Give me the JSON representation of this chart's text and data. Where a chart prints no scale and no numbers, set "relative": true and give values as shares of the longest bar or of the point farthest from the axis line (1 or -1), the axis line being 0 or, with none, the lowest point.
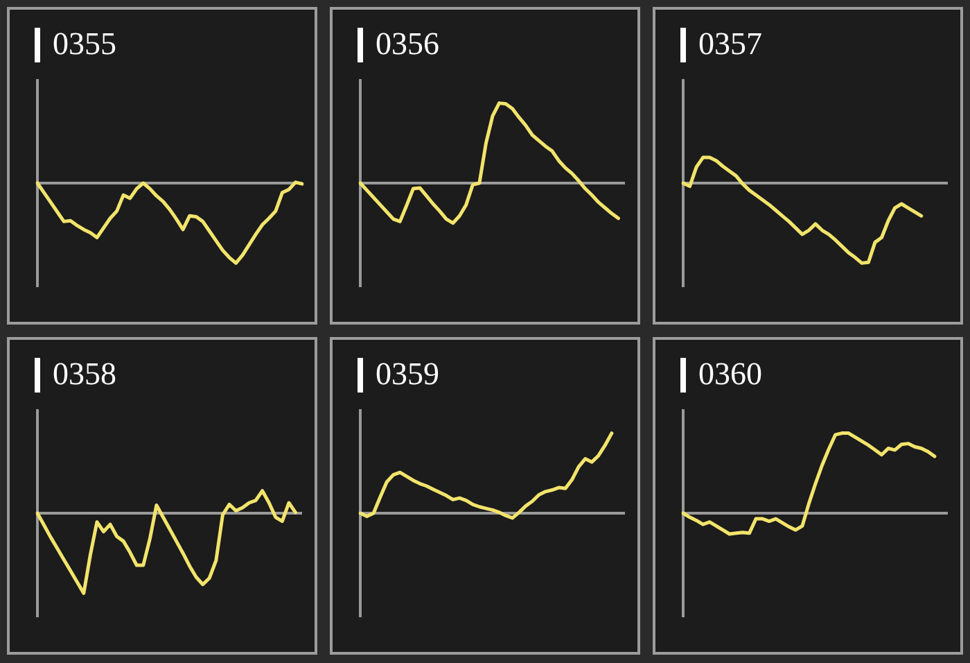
{
  "chart_data": [
    {
      "type": "line",
      "title": "0355",
      "relative": true,
      "color": "#f2e46b",
      "categories": [
        null,
        null,
        null,
        null,
        null,
        null,
        null,
        null,
        null,
        null,
        null,
        null,
        null,
        null,
        null,
        null,
        null,
        null,
        null,
        null,
        null,
        null,
        null,
        null,
        null,
        null,
        null,
        null,
        null,
        null,
        null,
        null,
        null,
        null,
        null,
        null,
        null,
        null,
        null,
        null,
        null
      ],
      "values": [
        0,
        -0.12,
        -0.24,
        -0.36,
        -0.48,
        -0.47,
        -0.53,
        -0.58,
        -0.62,
        -0.68,
        -0.56,
        -0.44,
        -0.35,
        -0.15,
        -0.19,
        -0.07,
        0,
        -0.07,
        -0.16,
        -0.23,
        -0.33,
        -0.45,
        -0.58,
        -0.41,
        -0.42,
        -0.48,
        -0.6,
        -0.72,
        -0.84,
        -0.93,
        -1,
        -0.9,
        -0.77,
        -0.64,
        -0.52,
        -0.44,
        -0.35,
        -0.12,
        -0.08,
        0.01,
        -0.01
      ]
    },
    {
      "type": "line",
      "title": "0356",
      "relative": true,
      "color": "#f2e46b",
      "categories": [
        null,
        null,
        null,
        null,
        null,
        null,
        null,
        null,
        null,
        null,
        null,
        null,
        null,
        null,
        null,
        null,
        null,
        null,
        null,
        null,
        null,
        null,
        null,
        null,
        null,
        null,
        null,
        null,
        null,
        null,
        null,
        null,
        null,
        null,
        null,
        null,
        null,
        null,
        null,
        null,
        null
      ],
      "values": [
        0,
        -0.09,
        -0.18,
        -0.27,
        -0.36,
        -0.45,
        -0.48,
        -0.28,
        -0.07,
        -0.06,
        -0.16,
        -0.26,
        -0.35,
        -0.45,
        -0.5,
        -0.41,
        -0.27,
        -0.02,
        0,
        0.5,
        0.84,
        1,
        0.99,
        0.93,
        0.82,
        0.72,
        0.6,
        0.53,
        0.46,
        0.4,
        0.28,
        0.19,
        0.12,
        0.03,
        -0.07,
        -0.15,
        -0.24,
        -0.31,
        -0.38,
        -0.44,
        null
      ]
    },
    {
      "type": "line",
      "title": "0357",
      "relative": true,
      "color": "#f2e46b",
      "categories": [
        null,
        null,
        null,
        null,
        null,
        null,
        null,
        null,
        null,
        null,
        null,
        null,
        null,
        null,
        null,
        null,
        null,
        null,
        null,
        null,
        null,
        null,
        null,
        null,
        null,
        null,
        null,
        null,
        null,
        null,
        null,
        null,
        null,
        null,
        null,
        null,
        null,
        null,
        null,
        null,
        null
      ],
      "values": [
        0,
        -0.04,
        0.2,
        0.32,
        0.32,
        0.28,
        0.21,
        0.15,
        0.09,
        -0.01,
        -0.09,
        -0.15,
        -0.21,
        -0.27,
        -0.34,
        -0.41,
        -0.48,
        -0.56,
        -0.64,
        -0.59,
        -0.51,
        -0.59,
        -0.64,
        -0.71,
        -0.79,
        -0.87,
        -0.93,
        -1,
        -0.99,
        -0.74,
        -0.68,
        -0.47,
        -0.31,
        -0.26,
        -0.31,
        -0.36,
        -0.41,
        null,
        null,
        null,
        null
      ]
    },
    {
      "type": "line",
      "title": "0358",
      "relative": true,
      "color": "#f2e46b",
      "categories": [
        null,
        null,
        null,
        null,
        null,
        null,
        null,
        null,
        null,
        null,
        null,
        null,
        null,
        null,
        null,
        null,
        null,
        null,
        null,
        null,
        null,
        null,
        null,
        null,
        null,
        null,
        null,
        null,
        null,
        null,
        null,
        null,
        null,
        null,
        null,
        null,
        null,
        null,
        null,
        null,
        null
      ],
      "values": [
        0,
        -0.15,
        -0.3,
        -0.44,
        -0.58,
        -0.72,
        -0.86,
        -1,
        -0.52,
        -0.11,
        -0.23,
        -0.14,
        -0.29,
        -0.35,
        -0.49,
        -0.65,
        -0.65,
        -0.32,
        0.1,
        -0.05,
        -0.2,
        -0.35,
        -0.5,
        -0.66,
        -0.8,
        -0.89,
        -0.81,
        -0.59,
        -0.02,
        0.11,
        0.03,
        0.07,
        0.13,
        0.16,
        0.28,
        0.13,
        -0.05,
        -0.1,
        0.13,
        0.01,
        null
      ]
    },
    {
      "type": "line",
      "title": "0359",
      "relative": true,
      "color": "#f2e46b",
      "categories": [
        null,
        null,
        null,
        null,
        null,
        null,
        null,
        null,
        null,
        null,
        null,
        null,
        null,
        null,
        null,
        null,
        null,
        null,
        null,
        null,
        null,
        null,
        null,
        null,
        null,
        null,
        null,
        null,
        null,
        null,
        null,
        null,
        null,
        null,
        null,
        null,
        null,
        null,
        null,
        null,
        null
      ],
      "values": [
        0,
        -0.04,
        0,
        0.2,
        0.39,
        0.48,
        0.51,
        0.46,
        0.41,
        0.37,
        0.34,
        0.3,
        0.26,
        0.22,
        0.17,
        0.19,
        0.16,
        0.11,
        0.08,
        0.06,
        0.04,
        0.01,
        -0.03,
        -0.06,
        0.01,
        0.09,
        0.15,
        0.23,
        0.27,
        0.29,
        0.32,
        0.31,
        0.42,
        0.58,
        0.68,
        0.64,
        0.72,
        0.85,
        1,
        null,
        null
      ]
    },
    {
      "type": "line",
      "title": "0360",
      "relative": true,
      "color": "#f2e46b",
      "categories": [
        null,
        null,
        null,
        null,
        null,
        null,
        null,
        null,
        null,
        null,
        null,
        null,
        null,
        null,
        null,
        null,
        null,
        null,
        null,
        null,
        null,
        null,
        null,
        null,
        null,
        null,
        null,
        null,
        null,
        null,
        null,
        null,
        null,
        null,
        null,
        null,
        null,
        null,
        null,
        null,
        null
      ],
      "values": [
        0,
        -0.05,
        -0.09,
        -0.14,
        -0.11,
        -0.16,
        -0.21,
        -0.26,
        -0.25,
        -0.24,
        -0.25,
        -0.07,
        -0.07,
        -0.1,
        -0.07,
        -0.12,
        -0.17,
        -0.21,
        -0.16,
        0.12,
        0.37,
        0.6,
        0.8,
        0.98,
        1,
        1,
        0.95,
        0.9,
        0.85,
        0.79,
        0.73,
        0.81,
        0.79,
        0.86,
        0.87,
        0.83,
        0.81,
        0.77,
        0.71,
        null,
        null
      ]
    }
  ]
}
